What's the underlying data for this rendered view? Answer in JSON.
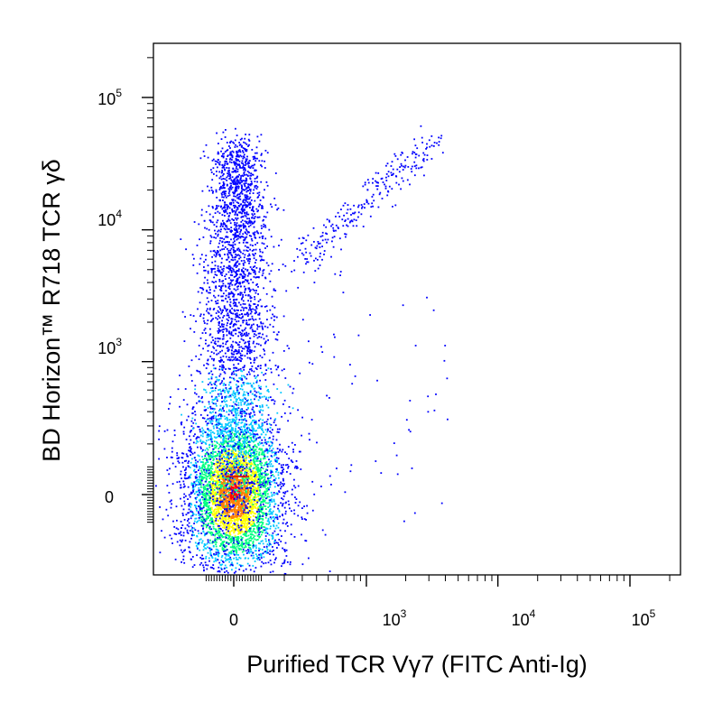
{
  "chart_data": {
    "type": "scatter",
    "style": "density dot plot (flow cytometry)",
    "title": "",
    "xlabel": "Purified TCR Vγ7 (FITC Anti-Ig)",
    "ylabel": "BD Horizon™ R718 TCR γδ",
    "x_scale": "biexponential",
    "y_scale": "biexponential",
    "xlim": [
      -150,
      200000
    ],
    "ylim": [
      -150,
      250000
    ],
    "x_ticks": [
      {
        "value": 0,
        "base": "0",
        "exp": ""
      },
      {
        "value": 1000,
        "base": "10",
        "exp": "3"
      },
      {
        "value": 10000,
        "base": "10",
        "exp": "4"
      },
      {
        "value": 100000,
        "base": "10",
        "exp": "5"
      }
    ],
    "y_ticks": [
      {
        "value": 0,
        "base": "0",
        "exp": ""
      },
      {
        "value": 1000,
        "base": "10",
        "exp": "3"
      },
      {
        "value": 10000,
        "base": "10",
        "exp": "4"
      },
      {
        "value": 100000,
        "base": "10",
        "exp": "5"
      }
    ],
    "grid": false,
    "legend": "none",
    "color_scale": [
      "#0000ff",
      "#00c8ff",
      "#00ff80",
      "#ffff00",
      "#ff8000",
      "#ff0000"
    ],
    "populations": [
      {
        "x_center": 0,
        "y_center": 0,
        "x_spread": 45,
        "y_spread": 55,
        "share": 0.6
      },
      {
        "x_center": 5,
        "y_center": 600,
        "x_spread": 60,
        "y_spread": 2000,
        "share": 0.32
      },
      {
        "x_center": 800,
        "y_center": 6000,
        "x_spread": 500,
        "y_spread": 5000,
        "share": 0.08
      }
    ]
  }
}
